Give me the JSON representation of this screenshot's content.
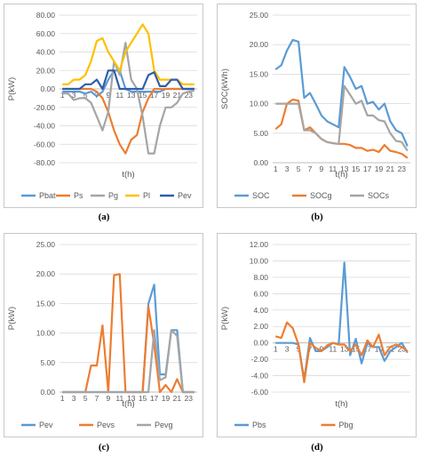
{
  "chart_data": [
    {
      "type": "line",
      "panel_label": "(a)",
      "ylabel": "P(kW)",
      "xlabel": "t(h)",
      "ylim": [
        -80,
        80
      ],
      "yticks": [
        "80.00",
        "60.00",
        "40.00",
        "20.00",
        "0.00",
        "-20.00",
        "-40.00",
        "-60.00",
        "-80.00"
      ],
      "ytick_values": [
        80,
        60,
        40,
        20,
        0,
        -20,
        -40,
        -60,
        -80
      ],
      "xticks": [
        "1",
        "3",
        "5",
        "7",
        "9",
        "11",
        "13",
        "15",
        "17",
        "19",
        "21",
        "23"
      ],
      "x": [
        1,
        2,
        3,
        4,
        5,
        6,
        7,
        8,
        9,
        10,
        11,
        12,
        13,
        14,
        15,
        16,
        17,
        18,
        19,
        20,
        21,
        22,
        23,
        24
      ],
      "xaxis_at_zero": true,
      "legend_position": "bottom",
      "series": [
        {
          "name": "Pbat",
          "color": "#5b9bd5",
          "values": [
            -3,
            -3,
            -3,
            -3,
            -5,
            -3,
            -8,
            -3,
            10,
            20,
            20,
            0,
            -3,
            -3,
            -3,
            -3,
            -3,
            -3,
            0,
            0,
            0,
            0,
            0,
            0
          ]
        },
        {
          "name": "Ps",
          "color": "#ed7d31",
          "values": [
            0,
            0,
            0,
            0,
            0,
            0,
            -3,
            -10,
            -25,
            -45,
            -60,
            -70,
            -55,
            -50,
            -25,
            -10,
            0,
            0,
            0,
            0,
            0,
            0,
            0,
            0
          ]
        },
        {
          "name": "Pg",
          "color": "#a5a5a5",
          "values": [
            -5,
            -5,
            -12,
            -10,
            -10,
            -15,
            -30,
            -45,
            -25,
            30,
            15,
            50,
            10,
            0,
            -30,
            -70,
            -70,
            -40,
            -20,
            -20,
            -15,
            -5,
            -3,
            -2
          ]
        },
        {
          "name": "Pl",
          "color": "#ffc000",
          "values": [
            5,
            5,
            10,
            10,
            15,
            30,
            52,
            55,
            40,
            30,
            20,
            40,
            50,
            60,
            70,
            60,
            20,
            10,
            10,
            10,
            10,
            5,
            5,
            5
          ]
        },
        {
          "name": "Pev",
          "color": "#2e5fa8",
          "values": [
            0,
            0,
            0,
            0,
            5,
            5,
            10,
            0,
            20,
            20,
            0,
            0,
            0,
            0,
            0,
            15,
            18,
            3,
            3,
            10,
            10,
            0,
            0,
            0
          ]
        }
      ]
    },
    {
      "type": "line",
      "panel_label": "(b)",
      "ylabel": "SOC(kWh)",
      "xlabel": "t(h)",
      "ylim": [
        0,
        25
      ],
      "yticks": [
        "25.00",
        "20.00",
        "15.00",
        "10.00",
        "5.00",
        "0.00"
      ],
      "ytick_values": [
        25,
        20,
        15,
        10,
        5,
        0
      ],
      "xticks": [
        "1",
        "3",
        "5",
        "7",
        "9",
        "11",
        "13",
        "15",
        "17",
        "19",
        "21",
        "23"
      ],
      "x": [
        1,
        2,
        3,
        4,
        5,
        6,
        7,
        8,
        9,
        10,
        11,
        12,
        13,
        14,
        15,
        16,
        17,
        18,
        19,
        20,
        21,
        22,
        23,
        24
      ],
      "legend_position": "bottom",
      "series": [
        {
          "name": "SOC",
          "color": "#5b9bd5",
          "values": [
            15.8,
            16.5,
            19,
            20.8,
            20.5,
            11,
            11.8,
            10,
            8,
            7,
            6.5,
            6,
            16.2,
            14.5,
            12.5,
            13,
            10,
            10.3,
            9,
            10,
            7,
            5.5,
            5,
            2.8
          ]
        },
        {
          "name": "SOCg",
          "color": "#ed7d31",
          "values": [
            5.7,
            6.5,
            10,
            10.7,
            10.5,
            5.5,
            6,
            5,
            4,
            3.5,
            3.3,
            3.2,
            3.2,
            3,
            2.5,
            2.5,
            2,
            2.2,
            1.8,
            3,
            2,
            1.8,
            1.5,
            0.8
          ]
        },
        {
          "name": "SOCs",
          "color": "#a5a5a5",
          "values": [
            10,
            10,
            10,
            10,
            10,
            5.5,
            5.5,
            5,
            4,
            3.5,
            3.3,
            3.2,
            13,
            11.5,
            10,
            10.5,
            8,
            8,
            7.2,
            7,
            5,
            3.7,
            3.5,
            2
          ]
        }
      ]
    },
    {
      "type": "line",
      "panel_label": "(c)",
      "ylabel": "P(kW)",
      "xlabel": "t(h)",
      "ylim": [
        0,
        25
      ],
      "yticks": [
        "25.00",
        "20.00",
        "15.00",
        "10.00",
        "5.00",
        "0.00"
      ],
      "ytick_values": [
        25,
        20,
        15,
        10,
        5,
        0
      ],
      "xticks": [
        "1",
        "3",
        "5",
        "7",
        "9",
        "11",
        "13",
        "15",
        "17",
        "19",
        "21",
        "23"
      ],
      "x": [
        1,
        2,
        3,
        4,
        5,
        6,
        7,
        8,
        9,
        10,
        11,
        12,
        13,
        14,
        15,
        16,
        17,
        18,
        19,
        20,
        21,
        22,
        23,
        24
      ],
      "legend_position": "bottom",
      "series": [
        {
          "name": "Pev",
          "color": "#5b9bd5",
          "values": [
            0,
            0,
            0,
            0,
            0,
            0,
            0,
            0,
            0,
            0,
            0,
            0,
            0,
            0,
            0,
            15,
            18.2,
            3,
            3,
            10.5,
            10.5,
            0,
            0,
            0
          ]
        },
        {
          "name": "Pevs",
          "color": "#ed7d31",
          "values": [
            0,
            0,
            0,
            0,
            0,
            4.5,
            4.5,
            11.3,
            0,
            19.8,
            20,
            0,
            0,
            0,
            0,
            14.5,
            8,
            0,
            1.2,
            0,
            2.2,
            0,
            0,
            0
          ]
        },
        {
          "name": "Pevg",
          "color": "#a5a5a5",
          "values": [
            0,
            0,
            0,
            0,
            0,
            0,
            0,
            0,
            0,
            0,
            0,
            0,
            0,
            0,
            0,
            0,
            10.5,
            2,
            2.5,
            10.5,
            9.5,
            0,
            0,
            0
          ]
        }
      ]
    },
    {
      "type": "line",
      "panel_label": "(d)",
      "ylabel": "P(kW)",
      "xlabel": "t(h)",
      "ylim": [
        -6,
        12
      ],
      "yticks": [
        "12.00",
        "10.00",
        "8.00",
        "6.00",
        "4.00",
        "2.00",
        "0.00",
        "-2.00",
        "-4.00",
        "-6.00"
      ],
      "ytick_values": [
        12,
        10,
        8,
        6,
        4,
        2,
        0,
        -2,
        -4,
        -6
      ],
      "xticks": [
        "1",
        "3",
        "5",
        "7",
        "9",
        "11",
        "13",
        "15",
        "17",
        "19",
        "21",
        "23"
      ],
      "x": [
        1,
        2,
        3,
        4,
        5,
        6,
        7,
        8,
        9,
        10,
        11,
        12,
        13,
        14,
        15,
        16,
        17,
        18,
        19,
        20,
        21,
        22,
        23,
        24
      ],
      "xaxis_at_zero": true,
      "legend_position": "bottom",
      "series": [
        {
          "name": "Pbs",
          "color": "#5b9bd5",
          "values": [
            0,
            0,
            0,
            0,
            -0.2,
            -4.5,
            0.6,
            -1,
            -1,
            -0.5,
            0,
            -0.2,
            9.8,
            -1.5,
            0.5,
            -2.5,
            0,
            -0.5,
            -0.5,
            -2.2,
            -1,
            -0.5,
            0,
            -1.2
          ]
        },
        {
          "name": "Pbg",
          "color": "#ed7d31",
          "values": [
            0.8,
            0.6,
            2.5,
            1.8,
            -0.2,
            -4.8,
            0,
            -0.6,
            -1,
            -0.3,
            0,
            -0.2,
            -0.2,
            -1,
            -0.2,
            -1.5,
            0.3,
            -0.5,
            1,
            -1.5,
            -0.5,
            -0.2,
            -0.5,
            -1
          ]
        }
      ]
    }
  ]
}
